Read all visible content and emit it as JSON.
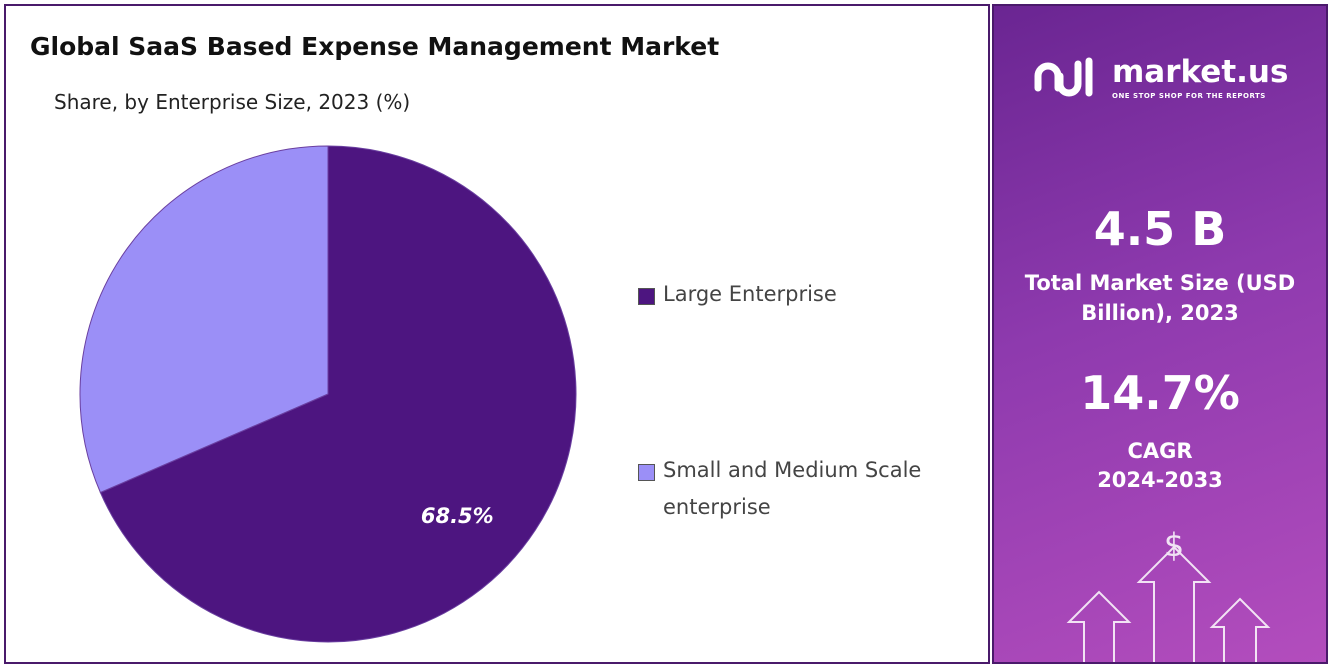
{
  "chart_data": {
    "type": "pie",
    "title": "Global SaaS Based Expense Management Market",
    "subtitle": "Share, by Enterprise Size, 2023 (%)",
    "categories": [
      "Large Enterprise",
      "Small and Medium Scale enterprise"
    ],
    "values": [
      68.5,
      31.5
    ],
    "value_labels": [
      "68.5%",
      null
    ],
    "colors": [
      "#4d1580",
      "#9b8ff7"
    ]
  },
  "side_panel": {
    "logo": "market.us",
    "tagline": "ONE STOP SHOP FOR THE REPORTS",
    "market_size": "4.5 B",
    "market_size_label": "Total Market Size (USD Billion), 2023",
    "cagr": "14.7%",
    "cagr_label": "CAGR",
    "cagr_period": "2024-2033"
  }
}
